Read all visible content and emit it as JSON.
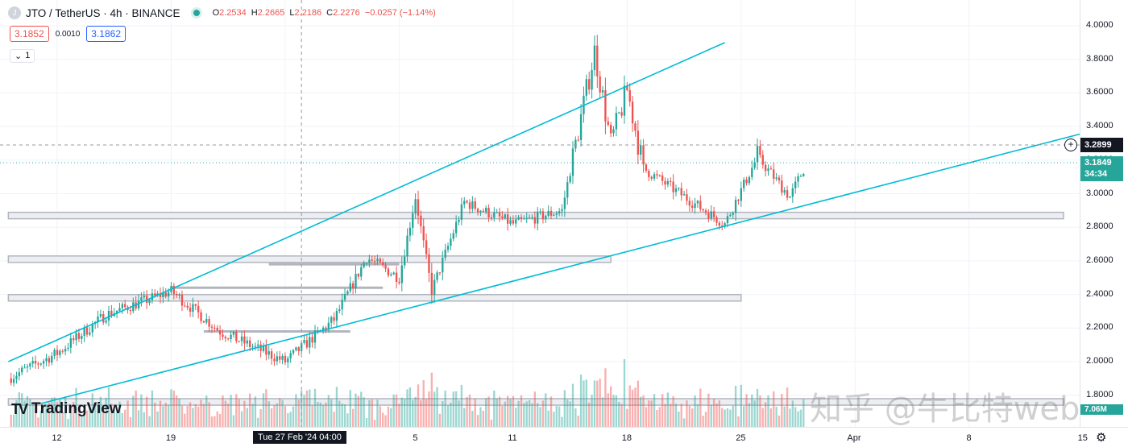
{
  "legend": {
    "logo_text": "J",
    "title": "JTO / TetherUS · 4h · BINANCE",
    "ohlc": [
      {
        "k": "O",
        "v": "2.2534"
      },
      {
        "k": "H",
        "v": "2.2665"
      },
      {
        "k": "L",
        "v": "2.2186"
      },
      {
        "k": "C",
        "v": "2.2276"
      }
    ],
    "change": "−0.0257 (−1.14%)"
  },
  "trade": {
    "sell": "3.1852",
    "spread": "0.0010",
    "buy": "3.1862"
  },
  "indicators_toggle": {
    "chevron": "⌄",
    "count": "1"
  },
  "branding": {
    "mark": "TV",
    "name": "TradingView"
  },
  "price_axis": {
    "ticks": [
      "4.0000",
      "3.8000",
      "3.6000",
      "3.4000",
      "3.2000",
      "3.0000",
      "2.8000",
      "2.6000",
      "2.4000",
      "2.2000",
      "2.0000",
      "1.8000"
    ],
    "crosshair_price": "3.2899",
    "last_price": "3.1849",
    "countdown": "34:34",
    "volume_tag": "7.06M"
  },
  "time_axis": {
    "labels": [
      "12",
      "19",
      "5",
      "11",
      "18",
      "25",
      "Apr",
      "8",
      "15"
    ],
    "crosshair_time": "Tue 27 Feb '24   04:00"
  },
  "watermark": "知乎 @牛比特web3",
  "colors": {
    "up": "#26a69a",
    "down": "#ef5350",
    "trendline": "#00bcd4",
    "zone": "#b2b5be"
  },
  "chart_data": {
    "type": "candlestick",
    "symbol": "JTO / TetherUS",
    "interval": "4h",
    "exchange": "BINANCE",
    "ylim": [
      1.73,
      4.1
    ],
    "x_range_days": [
      "2024-02-09",
      "2024-04-16"
    ],
    "key_points": [
      {
        "date": "2024-02-09",
        "price": 1.9
      },
      {
        "date": "2024-02-12",
        "price": 2.05
      },
      {
        "date": "2024-02-15",
        "price": 2.28
      },
      {
        "date": "2024-02-19",
        "price": 2.42
      },
      {
        "date": "2024-02-22",
        "price": 2.18
      },
      {
        "date": "2024-02-26",
        "price": 2.0
      },
      {
        "date": "2024-02-29",
        "price": 2.25
      },
      {
        "date": "2024-03-02",
        "price": 2.62
      },
      {
        "date": "2024-03-04",
        "price": 2.5
      },
      {
        "date": "2024-03-05",
        "price": 2.98
      },
      {
        "date": "2024-03-06",
        "price": 2.42
      },
      {
        "date": "2024-03-08",
        "price": 2.95
      },
      {
        "date": "2024-03-11",
        "price": 2.82
      },
      {
        "date": "2024-03-14",
        "price": 2.9
      },
      {
        "date": "2024-03-16",
        "price": 3.85
      },
      {
        "date": "2024-03-17",
        "price": 3.3
      },
      {
        "date": "2024-03-18",
        "price": 3.62
      },
      {
        "date": "2024-03-19",
        "price": 3.15
      },
      {
        "date": "2024-03-22",
        "price": 2.95
      },
      {
        "date": "2024-03-24",
        "price": 2.82
      },
      {
        "date": "2024-03-26",
        "price": 3.22
      },
      {
        "date": "2024-03-28",
        "price": 2.98
      },
      {
        "date": "2024-03-29",
        "price": 3.18
      }
    ],
    "trendlines": [
      {
        "from": {
          "date": "2024-02-09",
          "price": 2.0
        },
        "to": {
          "date": "2024-03-24",
          "price": 3.9
        }
      },
      {
        "from": {
          "date": "2024-02-11",
          "price": 1.75
        },
        "to": {
          "date": "2024-04-15",
          "price": 3.36
        }
      }
    ],
    "horizontal_zones": [
      {
        "from": "2024-02-09",
        "to": "2024-04-15",
        "price": 2.87
      },
      {
        "from": "2024-02-09",
        "to": "2024-03-17",
        "price": 2.61
      },
      {
        "from": "2024-02-09",
        "to": "2024-03-25",
        "price": 2.38
      },
      {
        "from": "2024-02-09",
        "to": "2024-04-15",
        "price": 1.76
      }
    ],
    "thin_levels": [
      {
        "from": "2024-02-19",
        "to": "2024-03-03",
        "price": 2.44
      },
      {
        "from": "2024-02-25",
        "to": "2024-03-04",
        "price": 2.58
      },
      {
        "from": "2024-02-21",
        "to": "2024-03-01",
        "price": 2.18
      }
    ]
  }
}
